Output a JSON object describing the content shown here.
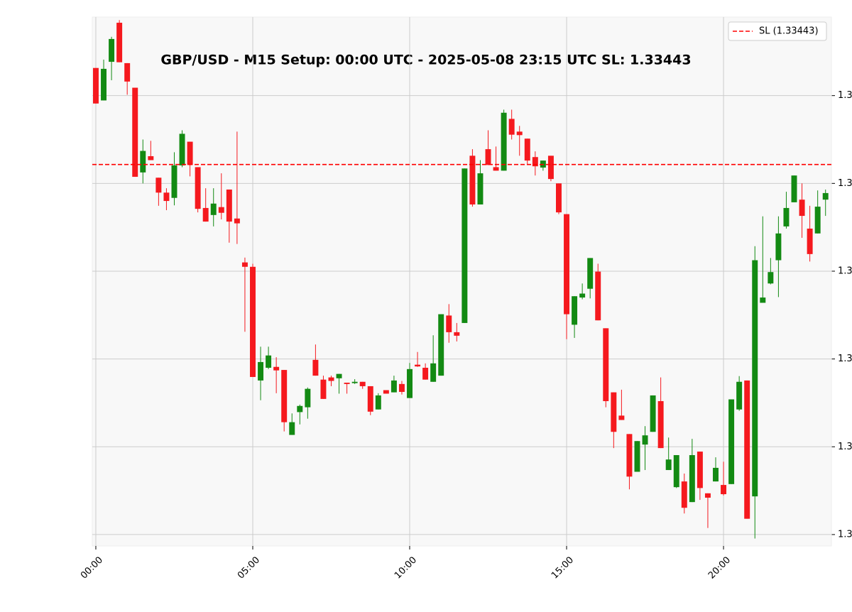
{
  "chart_data": {
    "type": "candlestick",
    "title": "GBP/USD - M15 Setup: 00:00 UTC - 2025-05-08 23:15 UTC SL: 1.33443",
    "x": [
      "00:00",
      "00:15",
      "00:30",
      "00:45",
      "01:00",
      "01:15",
      "01:30",
      "01:45",
      "02:00",
      "02:15",
      "02:30",
      "02:45",
      "03:00",
      "03:15",
      "03:30",
      "03:45",
      "04:00",
      "04:15",
      "04:30",
      "04:45",
      "05:00",
      "05:15",
      "05:30",
      "05:45",
      "06:00",
      "06:15",
      "06:30",
      "06:45",
      "07:00",
      "07:15",
      "07:30",
      "07:45",
      "08:00",
      "08:15",
      "08:30",
      "08:45",
      "09:00",
      "09:15",
      "09:30",
      "09:45",
      "10:00",
      "10:15",
      "10:30",
      "10:45",
      "11:00",
      "11:15",
      "11:30",
      "11:45",
      "12:00",
      "12:15",
      "12:30",
      "12:45",
      "13:00",
      "13:15",
      "13:30",
      "13:45",
      "14:00",
      "14:15",
      "14:30",
      "14:45",
      "15:00",
      "15:15",
      "15:30",
      "15:45",
      "16:00",
      "16:15",
      "16:30",
      "16:45",
      "17:00",
      "17:15",
      "17:30",
      "17:45",
      "18:00",
      "18:15",
      "18:30",
      "18:45",
      "19:00",
      "19:15",
      "19:30",
      "19:45",
      "20:00",
      "20:15",
      "20:30",
      "20:45",
      "21:00",
      "21:15",
      "21:30",
      "21:45",
      "22:00",
      "22:15",
      "22:30",
      "22:45",
      "23:00",
      "23:15"
    ],
    "open": [
      1.33663,
      1.33589,
      1.33677,
      1.33766,
      1.33674,
      1.33618,
      1.33425,
      1.33462,
      1.33413,
      1.33379,
      1.33367,
      1.33441,
      1.33495,
      1.33437,
      1.33344,
      1.33328,
      1.33346,
      1.33386,
      1.3332,
      1.3322,
      1.3321,
      1.32951,
      1.3298,
      1.32982,
      1.32975,
      1.32827,
      1.32879,
      1.3289,
      1.32998,
      1.32953,
      1.32958,
      1.32956,
      1.32946,
      1.32945,
      1.32948,
      1.32938,
      1.32885,
      1.32929,
      1.32924,
      1.32943,
      1.32911,
      1.32987,
      1.3298,
      1.32948,
      1.32962,
      1.33099,
      1.33061,
      1.33082,
      1.33463,
      1.33352,
      1.33478,
      1.33437,
      1.33429,
      1.33547,
      1.33518,
      1.33502,
      1.3346,
      1.33436,
      1.33463,
      1.334,
      1.3333,
      1.33078,
      1.3314,
      1.3316,
      1.33199,
      1.3307,
      1.32924,
      1.32871,
      1.32829,
      1.32743,
      1.32805,
      1.32834,
      1.32904,
      1.32747,
      1.32708,
      1.32721,
      1.32674,
      1.32789,
      1.32694,
      1.32721,
      1.32713,
      1.32715,
      1.32885,
      1.32951,
      1.32687,
      1.33128,
      1.33172,
      1.33225,
      1.33302,
      1.33357,
      1.33363,
      1.33297,
      1.33286,
      1.33363
    ],
    "high": [
      1.33663,
      1.33682,
      1.33734,
      1.33772,
      1.33674,
      1.33618,
      1.335,
      1.33497,
      1.33413,
      1.33389,
      1.33471,
      1.33521,
      1.33495,
      1.33437,
      1.33389,
      1.33389,
      1.33423,
      1.33386,
      1.33518,
      1.33231,
      1.33217,
      1.33028,
      1.33028,
      1.33004,
      1.32975,
      1.32876,
      1.32896,
      1.32935,
      1.33033,
      1.32962,
      1.32962,
      1.32966,
      1.32946,
      1.32954,
      1.32948,
      1.32938,
      1.32922,
      1.32929,
      1.32962,
      1.3295,
      1.32991,
      1.33016,
      1.3299,
      1.33054,
      1.33102,
      1.33125,
      1.33082,
      1.33434,
      1.33478,
      1.33453,
      1.33521,
      1.33484,
      1.33568,
      1.33568,
      1.33531,
      1.33502,
      1.33473,
      1.33452,
      1.33463,
      1.334,
      1.3333,
      1.33143,
      1.33172,
      1.3323,
      1.33217,
      1.3307,
      1.32924,
      1.3293,
      1.32829,
      1.32813,
      1.32847,
      1.32917,
      1.32958,
      1.32821,
      1.32781,
      1.32739,
      1.32818,
      1.32789,
      1.32694,
      1.32776,
      1.32766,
      1.32908,
      1.32961,
      1.32951,
      1.33257,
      1.33325,
      1.3323,
      1.33325,
      1.33381,
      1.33418,
      1.334,
      1.33349,
      1.33384,
      1.33386
    ],
    "low": [
      1.33582,
      1.33589,
      1.33635,
      1.33676,
      1.33602,
      1.33415,
      1.334,
      1.33453,
      1.33349,
      1.33339,
      1.3335,
      1.33437,
      1.33416,
      1.33334,
      1.33313,
      1.33302,
      1.33318,
      1.33265,
      1.33262,
      1.33062,
      1.32959,
      1.32906,
      1.32977,
      1.32922,
      1.32835,
      1.32827,
      1.32851,
      1.32864,
      1.32962,
      1.32909,
      1.32938,
      1.32921,
      1.32921,
      1.32943,
      1.32932,
      1.32872,
      1.32885,
      1.32921,
      1.32924,
      1.32919,
      1.32911,
      1.32982,
      1.32953,
      1.32948,
      1.32962,
      1.33037,
      1.3304,
      1.33082,
      1.33347,
      1.33352,
      1.33442,
      1.33429,
      1.33429,
      1.335,
      1.33463,
      1.33444,
      1.33418,
      1.33429,
      1.33405,
      1.3333,
      1.33045,
      1.33048,
      1.33136,
      1.33138,
      1.33088,
      1.3289,
      1.32797,
      1.32861,
      1.32703,
      1.32743,
      1.32747,
      1.32834,
      1.32797,
      1.32747,
      1.32706,
      1.32648,
      1.32674,
      1.32679,
      1.32615,
      1.32721,
      1.32689,
      1.32715,
      1.32882,
      1.32636,
      1.32591,
      1.33128,
      1.3317,
      1.33141,
      1.33297,
      1.33357,
      1.33276,
      1.33222,
      1.33286,
      1.33326
    ],
    "close": [
      1.33582,
      1.33661,
      1.33729,
      1.33676,
      1.33632,
      1.33415,
      1.33474,
      1.33453,
      1.33379,
      1.3336,
      1.33441,
      1.33513,
      1.33442,
      1.33342,
      1.33313,
      1.33354,
      1.33333,
      1.33313,
      1.33309,
      1.3321,
      1.32959,
      1.32993,
      1.33008,
      1.32974,
      1.32856,
      1.32856,
      1.32893,
      1.32932,
      1.32962,
      1.32909,
      1.3295,
      1.32966,
      1.32943,
      1.32948,
      1.32938,
      1.3288,
      1.32917,
      1.32921,
      1.32951,
      1.32925,
      1.32977,
      1.32983,
      1.32953,
      1.3299,
      1.33102,
      1.33061,
      1.33053,
      1.33434,
      1.33352,
      1.33423,
      1.33442,
      1.33429,
      1.33561,
      1.33511,
      1.3351,
      1.33452,
      1.33439,
      1.33452,
      1.3341,
      1.33334,
      1.33102,
      1.33143,
      1.33149,
      1.3323,
      1.33088,
      1.32904,
      1.32834,
      1.32861,
      1.32732,
      1.32813,
      1.32826,
      1.32917,
      1.32797,
      1.32771,
      1.32781,
      1.32661,
      1.32781,
      1.32706,
      1.32684,
      1.32752,
      1.32692,
      1.32908,
      1.32948,
      1.32636,
      1.33225,
      1.3314,
      1.33198,
      1.33286,
      1.33344,
      1.33418,
      1.33326,
      1.33239,
      1.33347,
      1.33378
    ],
    "up_color": "#138a13",
    "down_color": "#f5191e",
    "xticks": [
      "00:00",
      "05:00",
      "10:00",
      "15:00",
      "20:00"
    ],
    "ylim": [
      1.32574,
      1.33779
    ],
    "yticks": [
      {
        "value": 1.326,
        "label": "1.3"
      },
      {
        "value": 1.328,
        "label": "1.3"
      },
      {
        "value": 1.33,
        "label": "1.3"
      },
      {
        "value": 1.332,
        "label": "1.3"
      },
      {
        "value": 1.334,
        "label": "1.3"
      },
      {
        "value": 1.336,
        "label": "1.3"
      }
    ],
    "grid": true,
    "hline": {
      "name": "SL (1.33443)",
      "value": 1.33443,
      "color": "#ff0000"
    },
    "legend": "upper right"
  }
}
